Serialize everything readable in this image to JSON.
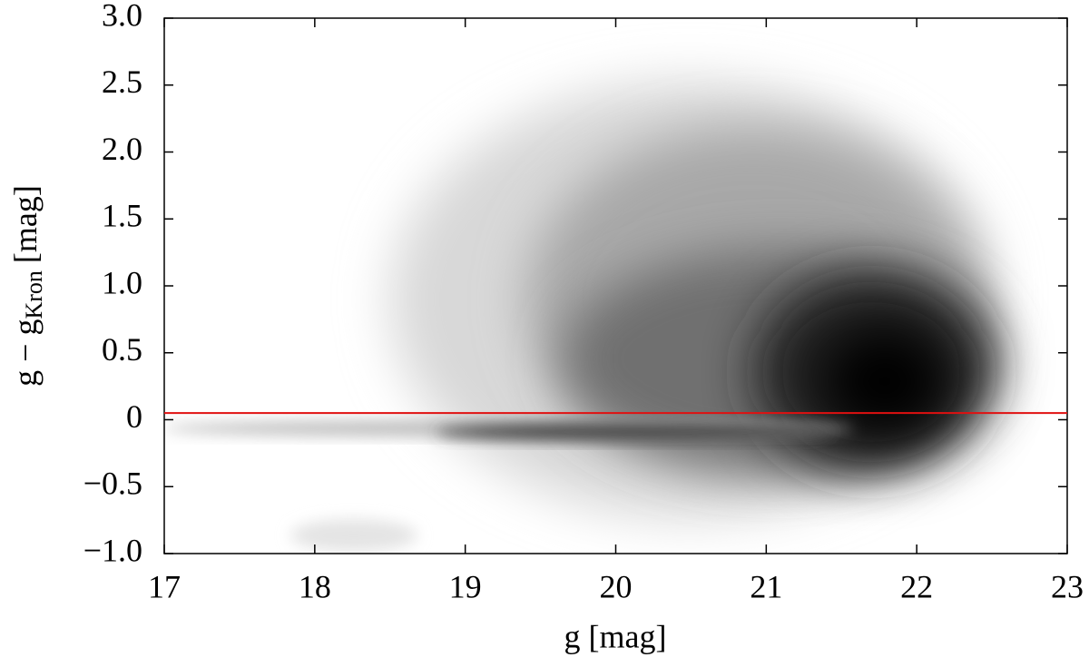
{
  "chart_data": {
    "type": "density-scatter",
    "xlabel": "g [mag]",
    "ylabel": "g − g",
    "ylabel_subscript": "Kron",
    "ylabel_unit": "[mag]",
    "xlim": [
      17,
      23
    ],
    "xticks": [
      17,
      18,
      19,
      20,
      21,
      22,
      23
    ],
    "ylim": [
      -1,
      3
    ],
    "yticks": [
      {
        "value": -1,
        "label": "−1.0"
      },
      {
        "value": -0.5,
        "label": "−0.5"
      },
      0,
      0.5,
      {
        "value": 1,
        "label": "1.0"
      },
      1.5,
      {
        "value": 2,
        "label": "2.0"
      },
      2.5,
      {
        "value": 3,
        "label": "3.0"
      }
    ],
    "hline": {
      "y": 0.05,
      "color": "#e01010"
    }
  }
}
